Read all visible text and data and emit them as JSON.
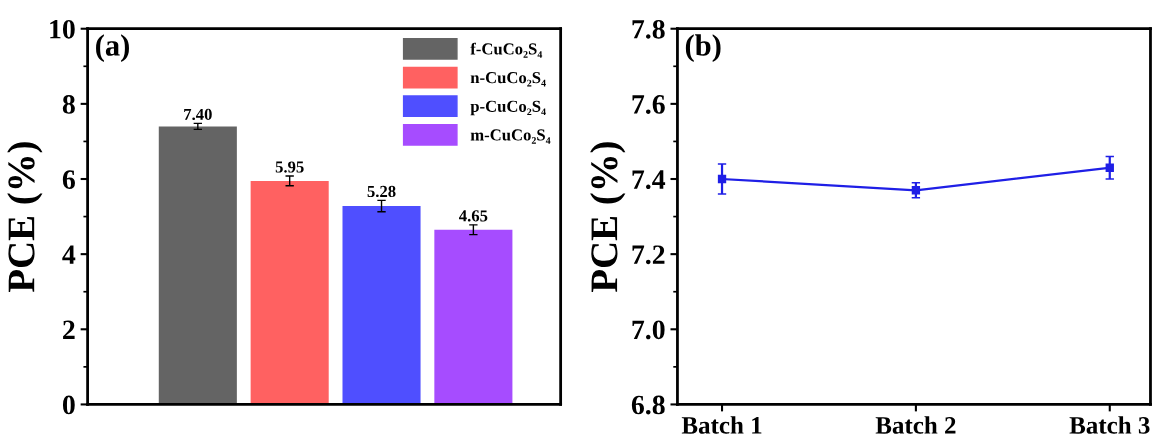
{
  "chart_data": [
    {
      "type": "bar",
      "categories": [
        null,
        null,
        null,
        null
      ],
      "ylabel": "PCE (%)",
      "annotations": [
        "(a)"
      ],
      "ylim": [
        0,
        10
      ],
      "yticks": [
        0,
        2,
        4,
        6,
        8,
        10
      ],
      "tick_labels": "y",
      "legend": "top right",
      "series": [
        {
          "name": "f-CuCo₂S₄",
          "color": "#646464",
          "values": [
            7.4,
            null,
            null,
            null
          ],
          "errors": [
            0.08,
            null,
            null,
            null
          ],
          "value_labels": [
            "7.40",
            null,
            null,
            null
          ]
        },
        {
          "name": "n-CuCo₂S₄",
          "color": "#ff6161",
          "values": [
            null,
            5.95,
            null,
            null
          ],
          "errors": [
            null,
            0.13,
            null,
            null
          ],
          "value_labels": [
            null,
            "5.95",
            null,
            null
          ]
        },
        {
          "name": "p-CuCo₂S₄",
          "color": "#4f4fff",
          "values": [
            null,
            null,
            5.28,
            null
          ],
          "errors": [
            null,
            null,
            0.15,
            null
          ],
          "value_labels": [
            null,
            null,
            "5.28",
            null
          ]
        },
        {
          "name": "m-CuCo₂S₄",
          "color": "#a64cff",
          "values": [
            null,
            null,
            null,
            4.65
          ],
          "errors": [
            null,
            null,
            null,
            0.13
          ],
          "value_labels": [
            null,
            null,
            null,
            "4.65"
          ]
        }
      ]
    },
    {
      "type": "line",
      "categories": [
        "Batch 1",
        "Batch 2",
        "Batch 3"
      ],
      "ylabel": "PCE (%)",
      "annotations": [
        "(b)"
      ],
      "ylim": [
        6.8,
        7.8
      ],
      "yticks": [
        6.8,
        {
          "value": 7,
          "label": "7.0"
        },
        7.2,
        7.4,
        7.6,
        7.8
      ],
      "marker": "square",
      "line_style": "solid",
      "series": [
        {
          "color": "#1f1fe6",
          "values": [
            7.4,
            7.37,
            7.43
          ],
          "errors": [
            0.04,
            0.02,
            0.03
          ]
        }
      ]
    }
  ]
}
